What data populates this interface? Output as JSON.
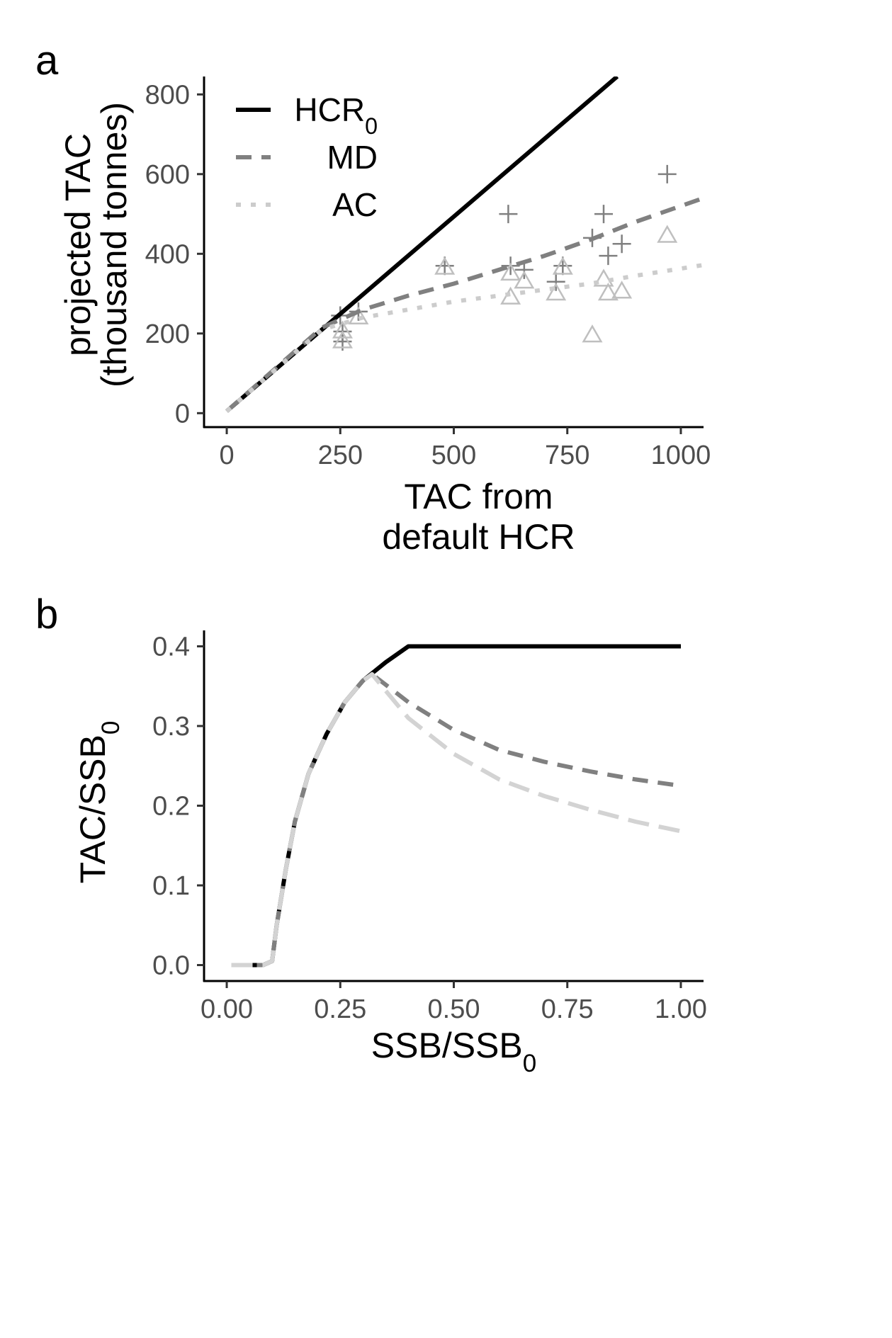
{
  "chart_data": [
    {
      "type": "line",
      "panel_label": "a",
      "xlabel_lines": [
        "TAC from",
        "default HCR"
      ],
      "ylabel_lines": [
        "projected TAC",
        "(thousand tonnes)"
      ],
      "xlim": [
        -50,
        1050
      ],
      "ylim": [
        -35,
        845
      ],
      "xticks": [
        0,
        250,
        500,
        750,
        1000
      ],
      "xtick_labels": [
        "0",
        "250",
        "500",
        "750",
        "1000"
      ],
      "yticks": [
        0,
        200,
        400,
        600,
        800
      ],
      "ytick_labels": [
        "0",
        "200",
        "400",
        "600",
        "800"
      ],
      "grid": false,
      "legend": {
        "position": "top-left",
        "entries": [
          {
            "key": "HCR0",
            "label": "HCR",
            "subscript": "0"
          },
          {
            "key": "MD",
            "label": "MD",
            "subscript": ""
          },
          {
            "key": "AC",
            "label": "AC",
            "subscript": ""
          }
        ]
      },
      "series": [
        {
          "key": "HCR0",
          "style": "solid",
          "color": "#000000",
          "points": [
            [
              0,
              5
            ],
            [
              210,
              210
            ],
            [
              860,
              845
            ]
          ]
        },
        {
          "key": "MD",
          "style": "dashed",
          "color": "#808080",
          "points": [
            [
              0,
              5
            ],
            [
              210,
              215
            ],
            [
              300,
              260
            ],
            [
              400,
              295
            ],
            [
              500,
              325
            ],
            [
              600,
              360
            ],
            [
              700,
              395
            ],
            [
              800,
              435
            ],
            [
              900,
              480
            ],
            [
              1050,
              540
            ]
          ]
        },
        {
          "key": "AC",
          "style": "dotted",
          "color": "#cccccc",
          "points": [
            [
              0,
              5
            ],
            [
              210,
              210
            ],
            [
              300,
              240
            ],
            [
              400,
              260
            ],
            [
              500,
              280
            ],
            [
              600,
              295
            ],
            [
              700,
              310
            ],
            [
              800,
              325
            ],
            [
              900,
              345
            ],
            [
              1050,
              372
            ]
          ]
        }
      ],
      "scatter": [
        {
          "marker": "plus",
          "color": "#808080",
          "points": [
            [
              250,
              245
            ],
            [
              255,
              180
            ],
            [
              255,
              205
            ],
            [
              290,
              255
            ],
            [
              480,
              370
            ],
            [
              620,
              500
            ],
            [
              625,
              370
            ],
            [
              655,
              360
            ],
            [
              725,
              330
            ],
            [
              740,
              370
            ],
            [
              805,
              440
            ],
            [
              830,
              500
            ],
            [
              840,
              395
            ],
            [
              870,
              425
            ],
            [
              970,
              600
            ]
          ]
        },
        {
          "marker": "triangle",
          "color": "#bfbfbf",
          "points": [
            [
              255,
              180
            ],
            [
              255,
              205
            ],
            [
              290,
              240
            ],
            [
              480,
              365
            ],
            [
              625,
              290
            ],
            [
              625,
              350
            ],
            [
              655,
              330
            ],
            [
              725,
              300
            ],
            [
              740,
              365
            ],
            [
              805,
              195
            ],
            [
              830,
              335
            ],
            [
              840,
              300
            ],
            [
              870,
              305
            ],
            [
              970,
              445
            ]
          ]
        }
      ]
    },
    {
      "type": "line",
      "panel_label": "b",
      "xlabel": "SSB/SSB",
      "xlabel_subscript": "0",
      "ylabel": "TAC/SSB",
      "ylabel_subscript": "0",
      "xlim": [
        -0.05,
        1.05
      ],
      "ylim": [
        -0.02,
        0.42
      ],
      "xticks": [
        0,
        0.25,
        0.5,
        0.75,
        1
      ],
      "xtick_labels": [
        "0.00",
        "0.25",
        "0.50",
        "0.75",
        "1.00"
      ],
      "yticks": [
        0,
        0.1,
        0.2,
        0.3,
        0.4
      ],
      "ytick_labels": [
        "0.0",
        "0.1",
        "0.2",
        "0.3",
        "0.4"
      ],
      "grid": false,
      "series": [
        {
          "key": "HCR0",
          "style": "solid",
          "color": "#000000",
          "points": [
            [
              0.01,
              0
            ],
            [
              0.08,
              0
            ],
            [
              0.1,
              0.005
            ],
            [
              0.11,
              0.05
            ],
            [
              0.13,
              0.12
            ],
            [
              0.15,
              0.18
            ],
            [
              0.18,
              0.24
            ],
            [
              0.22,
              0.29
            ],
            [
              0.26,
              0.33
            ],
            [
              0.3,
              0.357
            ],
            [
              0.35,
              0.38
            ],
            [
              0.4,
              0.4
            ],
            [
              1.0,
              0.4
            ]
          ]
        },
        {
          "key": "MD",
          "style": "dashed",
          "color": "#808080",
          "points": [
            [
              0.01,
              0
            ],
            [
              0.08,
              0
            ],
            [
              0.1,
              0.005
            ],
            [
              0.11,
              0.05
            ],
            [
              0.13,
              0.12
            ],
            [
              0.15,
              0.18
            ],
            [
              0.18,
              0.24
            ],
            [
              0.22,
              0.29
            ],
            [
              0.26,
              0.33
            ],
            [
              0.3,
              0.357
            ],
            [
              0.32,
              0.365
            ],
            [
              0.4,
              0.33
            ],
            [
              0.5,
              0.295
            ],
            [
              0.6,
              0.27
            ],
            [
              0.7,
              0.255
            ],
            [
              0.8,
              0.243
            ],
            [
              0.9,
              0.233
            ],
            [
              1.0,
              0.225
            ]
          ]
        },
        {
          "key": "AC",
          "style": "longdash",
          "color": "#d3d3d3",
          "points": [
            [
              0.01,
              0
            ],
            [
              0.08,
              0
            ],
            [
              0.1,
              0.005
            ],
            [
              0.11,
              0.05
            ],
            [
              0.13,
              0.12
            ],
            [
              0.15,
              0.18
            ],
            [
              0.18,
              0.24
            ],
            [
              0.22,
              0.29
            ],
            [
              0.26,
              0.33
            ],
            [
              0.3,
              0.357
            ],
            [
              0.32,
              0.365
            ],
            [
              0.4,
              0.31
            ],
            [
              0.5,
              0.265
            ],
            [
              0.6,
              0.233
            ],
            [
              0.7,
              0.212
            ],
            [
              0.8,
              0.195
            ],
            [
              0.9,
              0.18
            ],
            [
              1.0,
              0.168
            ]
          ]
        }
      ]
    }
  ]
}
